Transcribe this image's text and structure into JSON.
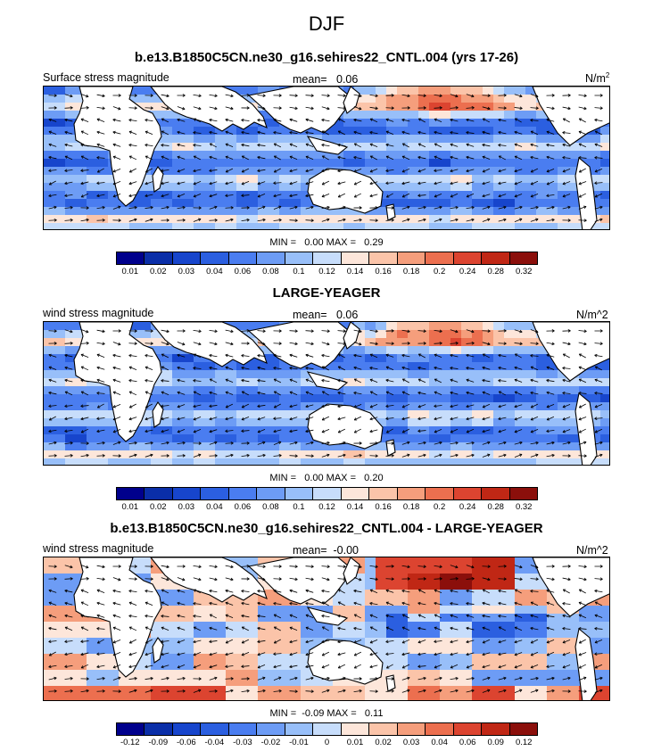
{
  "figure_title": "DJF",
  "colors": {
    "ramp": [
      "#00008c",
      "#0a2ea8",
      "#1745cc",
      "#2b5fe0",
      "#4a7df0",
      "#6d9cf5",
      "#98bff9",
      "#c7ddfb",
      "#fde6da",
      "#fbc4a9",
      "#f59e7c",
      "#ec6f4f",
      "#dc4430",
      "#c02715",
      "#8b0f0b"
    ]
  },
  "panels": [
    {
      "title": "b.e13.B1850C5CN.ne30_g16.sehires22_CNTL.004 (yrs 17-26)",
      "left_label": "Surface stress magnitude",
      "mean": "mean=   0.06",
      "units": "N/m",
      "units_sup": "2",
      "minmax": "MIN =   0.00 MAX =   0.29",
      "ticks": [
        "0.01",
        "0.02",
        "0.03",
        "0.04",
        "0.06",
        "0.08",
        "0.1",
        "0.12",
        "0.14",
        "0.16",
        "0.18",
        "0.2",
        "0.24",
        "0.28",
        "0.32"
      ]
    },
    {
      "title": "LARGE-YEAGER",
      "left_label": "wind stress magnitude",
      "mean": "mean=   0.06",
      "units": "N/m^2",
      "units_sup": "",
      "minmax": "MIN =   0.00 MAX =   0.20",
      "ticks": [
        "0.01",
        "0.02",
        "0.03",
        "0.04",
        "0.06",
        "0.08",
        "0.1",
        "0.12",
        "0.14",
        "0.16",
        "0.18",
        "0.2",
        "0.24",
        "0.28",
        "0.32"
      ]
    },
    {
      "title": "b.e13.B1850C5CN.ne30_g16.sehires22_CNTL.004 - LARGE-YEAGER",
      "left_label": "wind stress magnitude",
      "mean": "mean=  -0.00",
      "units": "N/m^2",
      "units_sup": "",
      "minmax": "MIN =  -0.09 MAX =   0.11",
      "ticks": [
        "-0.12",
        "-0.09",
        "-0.06",
        "-0.04",
        "-0.03",
        "-0.02",
        "-0.01",
        "0",
        "0.01",
        "0.02",
        "0.03",
        "0.04",
        "0.06",
        "0.09",
        "0.12"
      ]
    }
  ]
}
